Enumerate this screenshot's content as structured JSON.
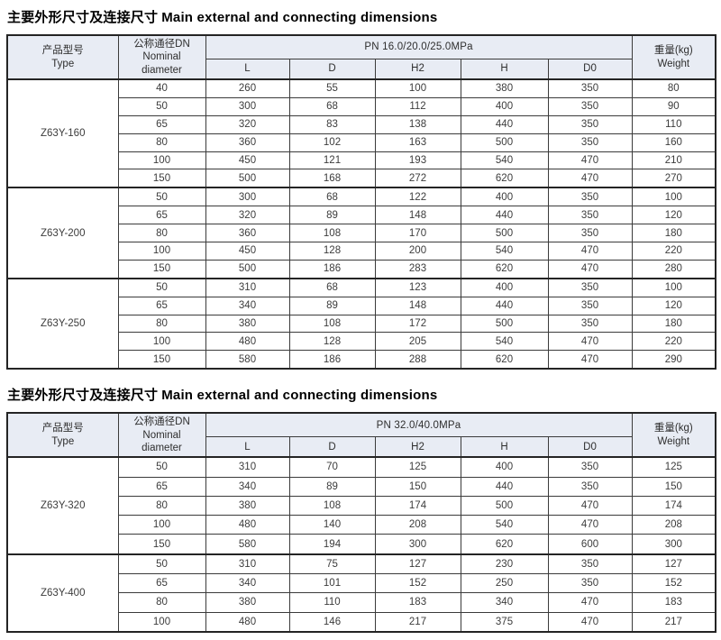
{
  "colors": {
    "header_bg": "#e8ecf4",
    "border_thin": "#3b3b3b",
    "border_thick": "#242424",
    "text": "#3c3c3c",
    "title_text": "#000000"
  },
  "tables": [
    {
      "title_zh": "主要外形尺寸及连接尺寸",
      "title_en": "Main external and connecting dimensions",
      "headers": {
        "type_zh": "产品型号",
        "type_en": "Type",
        "dn_zh": "公称通径DN",
        "dn_en1": "Nominal",
        "dn_en2": "diameter",
        "pn": "PN 16.0/20.0/25.0MPa",
        "dims": [
          "L",
          "D",
          "H2",
          "H",
          "D0"
        ],
        "weight_zh": "重量(kg)",
        "weight_en": "Weight"
      },
      "groups": [
        {
          "type": "Z63Y-160",
          "rows": [
            [
              40,
              260,
              55,
              100,
              380,
              350,
              80
            ],
            [
              50,
              300,
              68,
              112,
              400,
              350,
              90
            ],
            [
              65,
              320,
              83,
              138,
              440,
              350,
              110
            ],
            [
              80,
              360,
              102,
              163,
              500,
              350,
              160
            ],
            [
              100,
              450,
              121,
              193,
              540,
              470,
              210
            ],
            [
              150,
              500,
              168,
              272,
              620,
              470,
              270
            ]
          ]
        },
        {
          "type": "Z63Y-200",
          "rows": [
            [
              50,
              300,
              68,
              122,
              400,
              350,
              100
            ],
            [
              65,
              320,
              89,
              148,
              440,
              350,
              120
            ],
            [
              80,
              360,
              108,
              170,
              500,
              350,
              180
            ],
            [
              100,
              450,
              128,
              200,
              540,
              470,
              220
            ],
            [
              150,
              500,
              186,
              283,
              620,
              470,
              280
            ]
          ]
        },
        {
          "type": "Z63Y-250",
          "rows": [
            [
              50,
              310,
              68,
              123,
              400,
              350,
              100
            ],
            [
              65,
              340,
              89,
              148,
              440,
              350,
              120
            ],
            [
              80,
              380,
              108,
              172,
              500,
              350,
              180
            ],
            [
              100,
              480,
              128,
              205,
              540,
              470,
              220
            ],
            [
              150,
              580,
              186,
              288,
              620,
              470,
              290
            ]
          ]
        }
      ]
    },
    {
      "title_zh": "主要外形尺寸及连接尺寸",
      "title_en": "Main external and connecting dimensions",
      "headers": {
        "type_zh": "产品型号",
        "type_en": "Type",
        "dn_zh": "公称通径DN",
        "dn_en1": "Nominal",
        "dn_en2": "diameter",
        "pn": "PN 32.0/40.0MPa",
        "dims": [
          "L",
          "D",
          "H2",
          "H",
          "D0"
        ],
        "weight_zh": "重量(kg)",
        "weight_en": "Weight"
      },
      "groups": [
        {
          "type": "Z63Y-320",
          "rows": [
            [
              50,
              310,
              70,
              125,
              400,
              350,
              125
            ],
            [
              65,
              340,
              89,
              150,
              440,
              350,
              150
            ],
            [
              80,
              380,
              108,
              174,
              500,
              470,
              174
            ],
            [
              100,
              480,
              140,
              208,
              540,
              470,
              208
            ],
            [
              150,
              580,
              194,
              300,
              620,
              600,
              300
            ]
          ]
        },
        {
          "type": "Z63Y-400",
          "rows": [
            [
              50,
              310,
              75,
              127,
              230,
              350,
              127
            ],
            [
              65,
              340,
              101,
              152,
              250,
              350,
              152
            ],
            [
              80,
              380,
              110,
              183,
              340,
              470,
              183
            ],
            [
              100,
              480,
              146,
              217,
              375,
              470,
              217
            ]
          ]
        }
      ]
    }
  ]
}
